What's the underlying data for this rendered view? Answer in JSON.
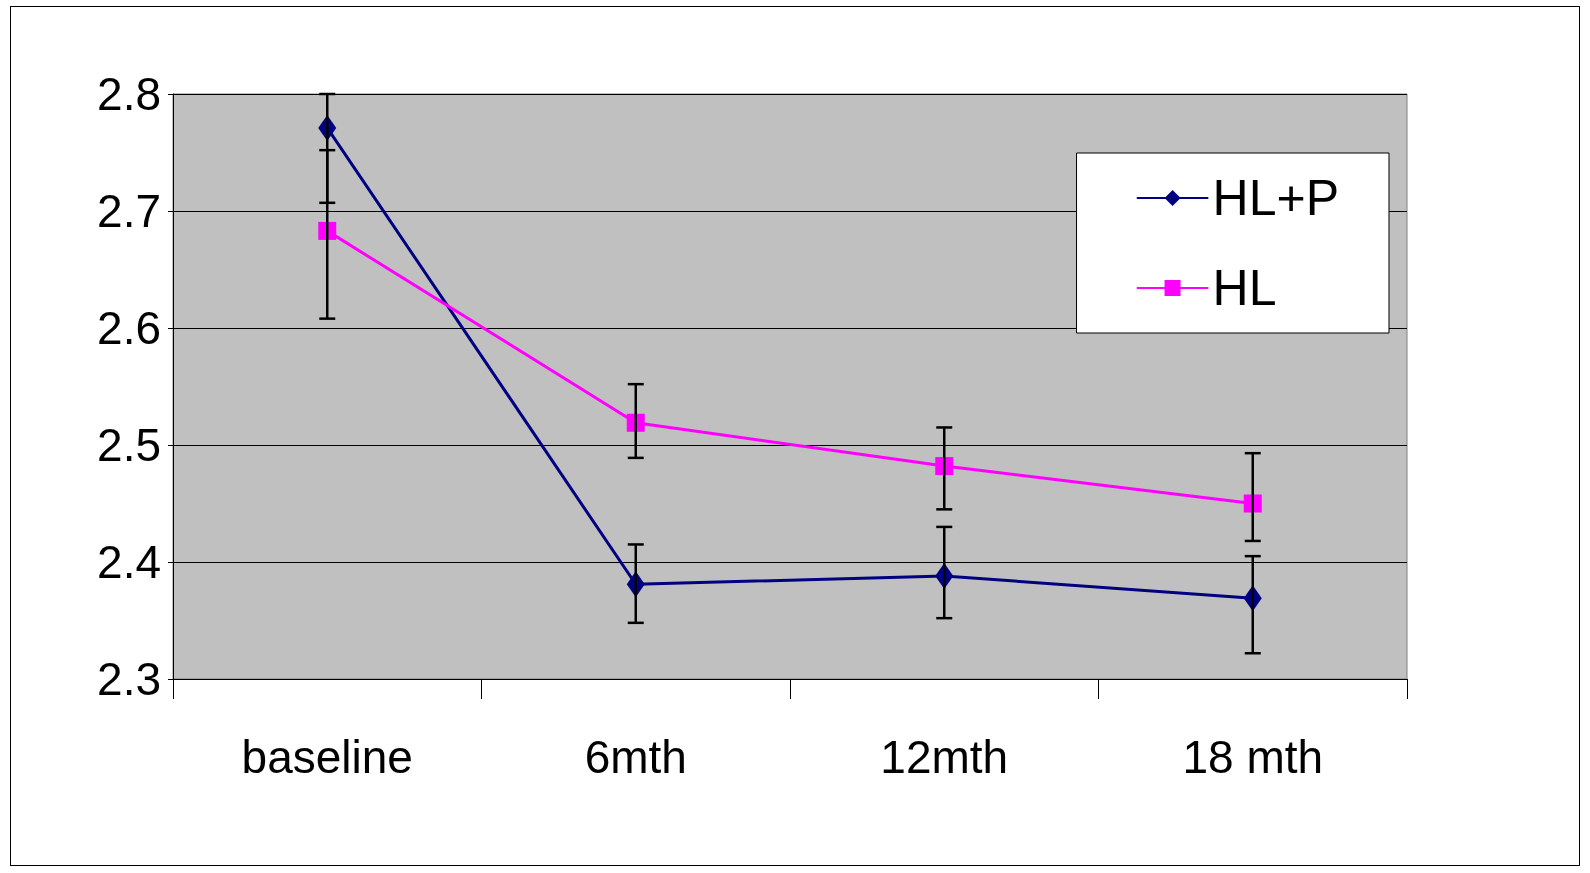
{
  "chart_data": {
    "type": "line",
    "categories": [
      "baseline",
      "6mth",
      "12mth",
      "18 mth"
    ],
    "series": [
      {
        "name": "HL+P",
        "color": "#000080",
        "marker": "diamond",
        "values": [
          2.771,
          2.381,
          2.388,
          2.369
        ],
        "errors": [
          [
            2.707,
            2.8
          ],
          [
            2.348,
            2.415
          ],
          [
            2.352,
            2.43
          ],
          [
            2.322,
            2.405
          ]
        ]
      },
      {
        "name": "HL",
        "color": "#ff00ff",
        "marker": "square",
        "values": [
          2.683,
          2.519,
          2.482,
          2.45
        ],
        "errors": [
          [
            2.608,
            2.752
          ],
          [
            2.489,
            2.552
          ],
          [
            2.445,
            2.515
          ],
          [
            2.418,
            2.493
          ]
        ]
      }
    ],
    "ylim": [
      2.3,
      2.8
    ],
    "yticks": [
      2.3,
      2.4,
      2.5,
      2.6,
      2.7,
      2.8
    ],
    "grid": "y",
    "legend": "top right",
    "line_style": "solid"
  }
}
